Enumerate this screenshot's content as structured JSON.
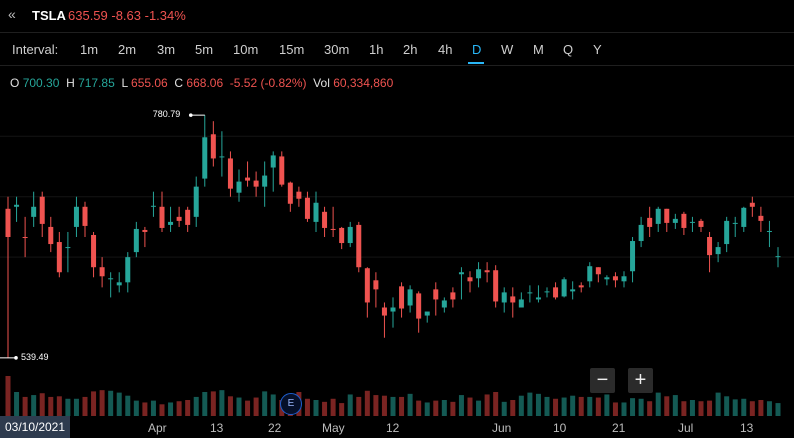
{
  "header": {
    "collapse_glyph": "«",
    "symbol": "TSLA",
    "price_line": "635.59 -8.63 -1.34%"
  },
  "interval_label": "Interval:",
  "intervals": [
    "1m",
    "2m",
    "3m",
    "5m",
    "10m",
    "15m",
    "30m",
    "1h",
    "2h",
    "4h",
    "D",
    "W",
    "M",
    "Q",
    "Y"
  ],
  "active_interval": "D",
  "ohlc": {
    "o_label": "O",
    "o_value": "700.30",
    "h_label": "H",
    "h_value": "717.85",
    "l_label": "L",
    "l_value": "655.06",
    "c_label": "C",
    "c_value": "668.06",
    "chg_value": "-5.52 (-0.82%)",
    "vol_label": "Vol",
    "vol_value": "60,334,860"
  },
  "markers": {
    "high": "780.79",
    "low": "539.49"
  },
  "zoom": {
    "minus": "−",
    "plus": "+"
  },
  "earnings_badge": "E",
  "date_badge": "03/10/2021",
  "x_labels": [
    "Apr",
    "13",
    "22",
    "May",
    "12",
    "Jun",
    "10",
    "21",
    "Jul",
    "13"
  ],
  "colors": {
    "up": "#26a69a",
    "down": "#ef5350",
    "accent": "#29b6f6"
  },
  "chart_data": {
    "type": "candlestick",
    "x": [
      "2021-03-10",
      "2021-03-11",
      "2021-03-12",
      "2021-03-15",
      "2021-03-16",
      "2021-03-17",
      "2021-03-18",
      "2021-03-19",
      "2021-03-22",
      "2021-03-23",
      "2021-03-24",
      "2021-03-25",
      "2021-03-26",
      "2021-03-29",
      "2021-03-30",
      "2021-03-31",
      "2021-04-01",
      "2021-04-05",
      "2021-04-06",
      "2021-04-07",
      "2021-04-08",
      "2021-04-09",
      "2021-04-12",
      "2021-04-13",
      "2021-04-14",
      "2021-04-15",
      "2021-04-16",
      "2021-04-19",
      "2021-04-20",
      "2021-04-21",
      "2021-04-22",
      "2021-04-23",
      "2021-04-26",
      "2021-04-27",
      "2021-04-28",
      "2021-04-29",
      "2021-04-30",
      "2021-05-03",
      "2021-05-04",
      "2021-05-05",
      "2021-05-06",
      "2021-05-07",
      "2021-05-10",
      "2021-05-11",
      "2021-05-12",
      "2021-05-13",
      "2021-05-14",
      "2021-05-17",
      "2021-05-18",
      "2021-05-19",
      "2021-05-20",
      "2021-05-21",
      "2021-05-24",
      "2021-05-25",
      "2021-05-26",
      "2021-05-27",
      "2021-05-28",
      "2021-06-01",
      "2021-06-02",
      "2021-06-03",
      "2021-06-04",
      "2021-06-07",
      "2021-06-08",
      "2021-06-09",
      "2021-06-10",
      "2021-06-11",
      "2021-06-14",
      "2021-06-15",
      "2021-06-16",
      "2021-06-17",
      "2021-06-18",
      "2021-06-21",
      "2021-06-22",
      "2021-06-23",
      "2021-06-24",
      "2021-06-25",
      "2021-06-28",
      "2021-06-29",
      "2021-06-30",
      "2021-07-01",
      "2021-07-02",
      "2021-07-06",
      "2021-07-07",
      "2021-07-08",
      "2021-07-09",
      "2021-07-12",
      "2021-07-13",
      "2021-07-14",
      "2021-07-15",
      "2021-07-16",
      "2021-07-19"
    ],
    "open": [
      688,
      690,
      660,
      680,
      700,
      670,
      655,
      650,
      670,
      690,
      662,
      630,
      618,
      612,
      615,
      645,
      667,
      690,
      690,
      672,
      680,
      687,
      680,
      718,
      762,
      740,
      738,
      704,
      719,
      716,
      710,
      729,
      740,
      714,
      705,
      699,
      675,
      685,
      668,
      669,
      654,
      672,
      629,
      617,
      590,
      586,
      611,
      592,
      604,
      582,
      608,
      590,
      605,
      623,
      620,
      619,
      627,
      627,
      595,
      601,
      590,
      605,
      598,
      605,
      610,
      601,
      606,
      612,
      616,
      630,
      618,
      621,
      616,
      626,
      656,
      679,
      673,
      688,
      674,
      683,
      675,
      676,
      660,
      643,
      653,
      674,
      670,
      694,
      681,
      665,
      640
    ],
    "close": [
      660,
      692,
      659,
      690,
      673,
      653,
      625,
      650,
      690,
      671,
      630,
      621,
      619,
      615,
      640,
      668,
      665,
      691,
      669,
      675,
      676,
      672,
      710,
      759,
      738,
      740,
      708,
      715,
      716,
      710,
      721,
      741,
      712,
      693,
      698,
      678,
      694,
      669,
      667,
      654,
      670,
      630,
      595,
      608,
      582,
      590,
      589,
      608,
      579,
      586,
      598,
      597,
      598,
      625,
      616,
      628,
      625,
      596,
      605,
      595,
      598,
      605,
      600,
      606,
      600,
      618,
      608,
      610,
      631,
      623,
      620,
      617,
      621,
      656,
      672,
      670,
      688,
      674,
      678,
      669,
      675,
      670,
      642,
      650,
      676,
      674,
      689,
      690,
      676,
      666,
      641
    ],
    "high": [
      700,
      700,
      680,
      705,
      705,
      680,
      665,
      665,
      700,
      695,
      665,
      640,
      625,
      625,
      645,
      675,
      670,
      705,
      705,
      690,
      690,
      690,
      720,
      781,
      775,
      765,
      745,
      727,
      735,
      725,
      735,
      745,
      745,
      715,
      710,
      705,
      705,
      690,
      690,
      670,
      675,
      675,
      630,
      625,
      595,
      600,
      615,
      612,
      606,
      585,
      615,
      600,
      610,
      630,
      626,
      635,
      635,
      632,
      610,
      610,
      605,
      612,
      612,
      610,
      615,
      620,
      616,
      615,
      635,
      630,
      622,
      625,
      626,
      660,
      680,
      690,
      690,
      688,
      683,
      685,
      680,
      678,
      665,
      655,
      680,
      680,
      690,
      700,
      690,
      676,
      650
    ],
    "low": [
      540,
      675,
      640,
      670,
      660,
      645,
      620,
      625,
      660,
      660,
      620,
      610,
      600,
      605,
      605,
      640,
      650,
      680,
      665,
      665,
      670,
      665,
      670,
      710,
      730,
      720,
      700,
      695,
      710,
      700,
      690,
      705,
      710,
      685,
      690,
      675,
      665,
      660,
      660,
      648,
      650,
      625,
      580,
      590,
      560,
      570,
      580,
      585,
      565,
      575,
      582,
      585,
      590,
      598,
      605,
      610,
      615,
      590,
      585,
      580,
      590,
      595,
      595,
      600,
      598,
      600,
      598,
      605,
      610,
      615,
      612,
      610,
      610,
      615,
      650,
      660,
      665,
      665,
      668,
      662,
      665,
      665,
      625,
      635,
      645,
      660,
      665,
      680,
      665,
      650,
      630
    ],
    "volume": [
      65,
      39,
      31,
      34,
      37,
      31,
      32,
      28,
      28,
      31,
      40,
      42,
      41,
      38,
      33,
      25,
      22,
      25,
      19,
      22,
      24,
      26,
      31,
      39,
      40,
      42,
      32,
      30,
      25,
      30,
      40,
      35,
      26,
      31,
      39,
      28,
      26,
      23,
      28,
      21,
      35,
      31,
      41,
      34,
      33,
      31,
      31,
      36,
      25,
      22,
      25,
      26,
      23,
      34,
      30,
      25,
      35,
      39,
      23,
      26,
      33,
      38,
      36,
      31,
      28,
      30,
      33,
      31,
      31,
      30,
      35,
      22,
      22,
      29,
      28,
      24,
      38,
      32,
      34,
      24,
      26,
      24,
      25,
      38,
      32,
      27,
      28,
      24,
      26,
      24,
      21
    ],
    "ylim": [
      520,
      800
    ],
    "high_label": "780.79",
    "low_label": "539.49"
  }
}
